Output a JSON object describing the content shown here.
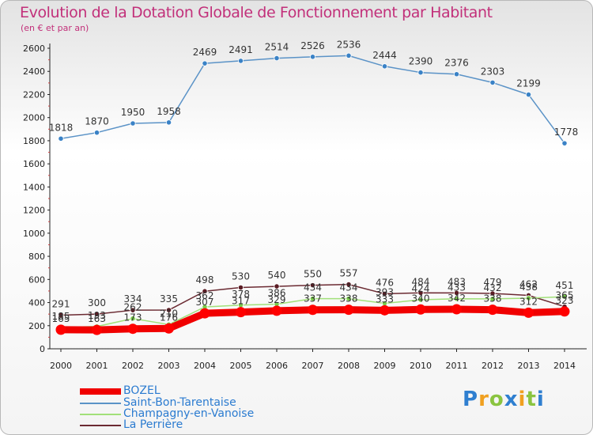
{
  "chart_data": {
    "type": "line",
    "title": "Evolution de la Dotation Globale de Fonctionnement par Habitant",
    "subtitle": "(en € et par an)",
    "xlabel": "",
    "ylabel": "",
    "categories": [
      "2000",
      "2001",
      "2002",
      "2003",
      "2004",
      "2005",
      "2006",
      "2007",
      "2008",
      "2009",
      "2010",
      "2011",
      "2012",
      "2013",
      "2014"
    ],
    "ylim": [
      0,
      2600
    ],
    "yticks": [
      "0",
      "200",
      "400",
      "600",
      "800",
      "1000",
      "1200",
      "1400",
      "1600",
      "1800",
      "2000",
      "2200",
      "2400",
      "2600"
    ],
    "grid": false,
    "series": [
      {
        "name": "Saint-Bon-Tarentaise",
        "color": "#5b93c7",
        "marker": "#3a82c6",
        "values": [
          1818,
          1870,
          1950,
          1958,
          2469,
          2491,
          2514,
          2526,
          2536,
          2444,
          2390,
          2376,
          2303,
          2199,
          1778
        ],
        "labels": [
          "1818",
          "1870",
          "1950",
          "1958",
          "2469",
          "2491",
          "2514",
          "2526",
          "2536",
          "2444",
          "2390",
          "2376",
          "2303",
          "2199",
          "1778"
        ]
      },
      {
        "name": "La Perrière",
        "color": "#6b2a32",
        "marker": "#5a1c24",
        "values": [
          291,
          300,
          334,
          335,
          498,
          530,
          540,
          550,
          557,
          476,
          484,
          483,
          479,
          462,
          365
        ],
        "labels": [
          "291",
          "300",
          "334",
          "335",
          "498",
          "530",
          "540",
          "550",
          "557",
          "476",
          "484",
          "483",
          "479",
          "462",
          "365"
        ]
      },
      {
        "name": "Champagny-en-Vanoise",
        "color": "#a2e07a",
        "marker": "#7acc4a",
        "values": [
          185,
          193,
          262,
          210,
          362,
          378,
          386,
          434,
          434,
          393,
          424,
          433,
          432,
          438,
          451
        ],
        "labels": [
          "185",
          "193",
          "262",
          "210",
          "362",
          "378",
          "386",
          "434",
          "434",
          "393",
          "424",
          "433",
          "432",
          "438",
          "451"
        ]
      },
      {
        "name": "BOZEL",
        "color": "#f00000",
        "marker": "#ff0000",
        "values": [
          165,
          163,
          173,
          176,
          307,
          317,
          329,
          337,
          338,
          333,
          340,
          342,
          338,
          312,
          323
        ],
        "labels": [
          "165",
          "163",
          "173",
          "176",
          "307",
          "317",
          "329",
          "337",
          "338",
          "333",
          "340",
          "342",
          "338",
          "312",
          "323"
        ]
      }
    ]
  },
  "legend": [
    {
      "name": "BOZEL",
      "color": "#f00000"
    },
    {
      "name": "Saint-Bon-Tarentaise",
      "color": "#5b93c7"
    },
    {
      "name": "Champagny-en-Vanoise",
      "color": "#a2e07a"
    },
    {
      "name": "La Perrière",
      "color": "#6b2a32"
    }
  ],
  "logo": {
    "letters": [
      "P",
      "r",
      "o",
      "x",
      "i",
      "t",
      "i"
    ],
    "colors": [
      "#2f7fd0",
      "#f0a020",
      "#8ac440",
      "#2f7fd0",
      "#f0a020",
      "#8ac440",
      "#2f7fd0"
    ]
  }
}
